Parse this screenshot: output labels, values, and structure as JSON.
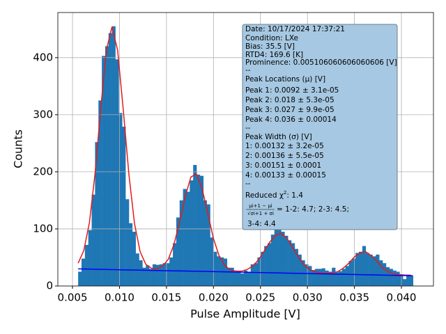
{
  "chart_data": {
    "type": "histogram",
    "xlabel": "Pulse Amplitude [V]",
    "ylabel": "Counts",
    "color": "#1f77b4",
    "grid": true,
    "xlim": [
      0.00344,
      0.04341
    ],
    "ylim": [
      0,
      479
    ],
    "xticks": [
      0.005,
      {
        "value": 0.01,
        "label": "0.010"
      },
      0.015,
      {
        "value": 0.02,
        "label": "0.020"
      },
      0.025,
      {
        "value": 0.03,
        "label": "0.030"
      },
      0.035,
      {
        "value": 0.04,
        "label": "0.040"
      }
    ],
    "yticks": [
      0,
      100,
      200,
      300,
      400
    ],
    "bins": [
      0.0056,
      0.00596,
      0.00632,
      0.00668,
      0.00704,
      0.0074,
      0.00776,
      0.00812,
      0.00848,
      0.00884,
      0.0092,
      0.00956,
      0.00992,
      0.01028,
      0.01064,
      0.011,
      0.01136,
      0.01172,
      0.01208,
      0.01244,
      0.0128,
      0.01316,
      0.01352,
      0.01388,
      0.01424,
      0.0146,
      0.01496,
      0.01532,
      0.01568,
      0.01604,
      0.0164,
      0.01676,
      0.01712,
      0.01748,
      0.01784,
      0.0182,
      0.01856,
      0.01892,
      0.01928,
      0.01964,
      0.02,
      0.02036,
      0.02072,
      0.02108,
      0.02144,
      0.0218,
      0.02216,
      0.02252,
      0.02288,
      0.02324,
      0.0236,
      0.02396,
      0.02432,
      0.02468,
      0.02504,
      0.0254,
      0.02576,
      0.02612,
      0.02648,
      0.02684,
      0.0272,
      0.02756,
      0.02792,
      0.02828,
      0.02864,
      0.029,
      0.02936,
      0.02972,
      0.03008,
      0.03044,
      0.0308,
      0.03116,
      0.03152,
      0.03188,
      0.03224,
      0.0326,
      0.03296,
      0.03332,
      0.03368,
      0.03404,
      0.0344,
      0.03476,
      0.03512,
      0.03548,
      0.03584,
      0.0362,
      0.03656,
      0.03692,
      0.03728,
      0.03764,
      0.038,
      0.03836,
      0.03872,
      0.03908,
      0.03944,
      0.0398,
      0.04016,
      0.04052,
      0.04088,
      0.04124
    ],
    "values": [
      25,
      48,
      72,
      98,
      160,
      252,
      325,
      403,
      420,
      443,
      455,
      397,
      303,
      279,
      152,
      110,
      95,
      57,
      45,
      32,
      36,
      30,
      38,
      37,
      38,
      40,
      40,
      50,
      75,
      120,
      150,
      170,
      165,
      185,
      212,
      195,
      193,
      150,
      143,
      85,
      60,
      52,
      50,
      48,
      32,
      32,
      25,
      25,
      22,
      27,
      25,
      38,
      40,
      50,
      60,
      70,
      75,
      90,
      100,
      105,
      95,
      88,
      80,
      75,
      65,
      55,
      45,
      38,
      35,
      28,
      30,
      30,
      31,
      27,
      25,
      32,
      24,
      26,
      30,
      35,
      44,
      48,
      58,
      60,
      70,
      58,
      55,
      52,
      55,
      45,
      40,
      33,
      30,
      27,
      25,
      20,
      12,
      18,
      18
    ],
    "fits": [
      {
        "color": "#e41a1c",
        "x": [
          0.0056,
          0.0062,
          0.0068,
          0.0074,
          0.008,
          0.0086,
          0.0092,
          0.0098,
          0.0104,
          0.011,
          0.0116,
          0.0122,
          0.0128,
          0.0134,
          0.014,
          0.0146,
          0.0152,
          0.0158,
          0.0164,
          0.017,
          0.0176,
          0.0182,
          0.0188,
          0.0194,
          0.02,
          0.0206,
          0.0212,
          0.0218,
          0.0224,
          0.023,
          0.0236,
          0.0242,
          0.0248,
          0.0254,
          0.026,
          0.0266,
          0.0272,
          0.0278,
          0.0284,
          0.029,
          0.0296,
          0.0302,
          0.0308,
          0.0314,
          0.032,
          0.0326,
          0.0332,
          0.0338,
          0.0344,
          0.035,
          0.0356,
          0.0362,
          0.0368,
          0.0374,
          0.038,
          0.0386,
          0.0392,
          0.0398,
          0.0404,
          0.041
        ],
        "values": [
          40,
          62,
          111,
          197,
          310,
          413,
          454,
          413,
          309,
          196,
          109,
          60,
          38,
          31,
          30,
          35,
          47,
          73,
          112,
          157,
          191,
          196,
          170,
          127,
          83,
          53,
          36,
          28,
          26,
          26,
          29,
          35,
          46,
          61,
          77,
          89,
          92,
          84,
          68,
          52,
          38,
          29,
          25,
          23,
          22,
          23,
          25,
          31,
          40,
          51,
          58,
          60,
          53,
          43,
          32,
          25,
          21,
          20,
          19,
          19
        ]
      },
      {
        "color": "#0000ff",
        "x": [
          0.0056,
          0.0412
        ],
        "values": [
          30,
          18
        ]
      }
    ],
    "annotation": {
      "lines": [
        "Date: 10/17/2024 17:37:21",
        "Condition: LXe",
        "Bias: 35.5 [V]",
        "RTD4: 169.6 [K]",
        "Prominence: 0.005106060606060606 [V]",
        "--",
        "Peak Locations (μ) [V]",
        "Peak 1: 0.0092 ± 3.1e-05",
        "Peak 2: 0.018 ± 5.3e-05",
        "Peak 3: 0.027 ± 9.9e-05",
        "Peak 4: 0.036 ± 0.00014",
        "--",
        "Peak Width (σ) [V]",
        "1: 0.00132 ± 3.2e-05",
        "2: 0.00136 ± 5.5e-05",
        "3: 0.00151 ± 0.0001",
        "4: 0.00133 ± 0.00015",
        "--"
      ],
      "chi2": {
        "label": "Reduced χ",
        "power": "2",
        "value": ": 1.4"
      },
      "ratio": {
        "numerator": "μi+1 − μi",
        "denominator": "√σi+1 + σi",
        "rest": "=  1-2: 4.7; 2-3: 4.5;",
        "continued": "3-4: 4.4"
      }
    }
  }
}
